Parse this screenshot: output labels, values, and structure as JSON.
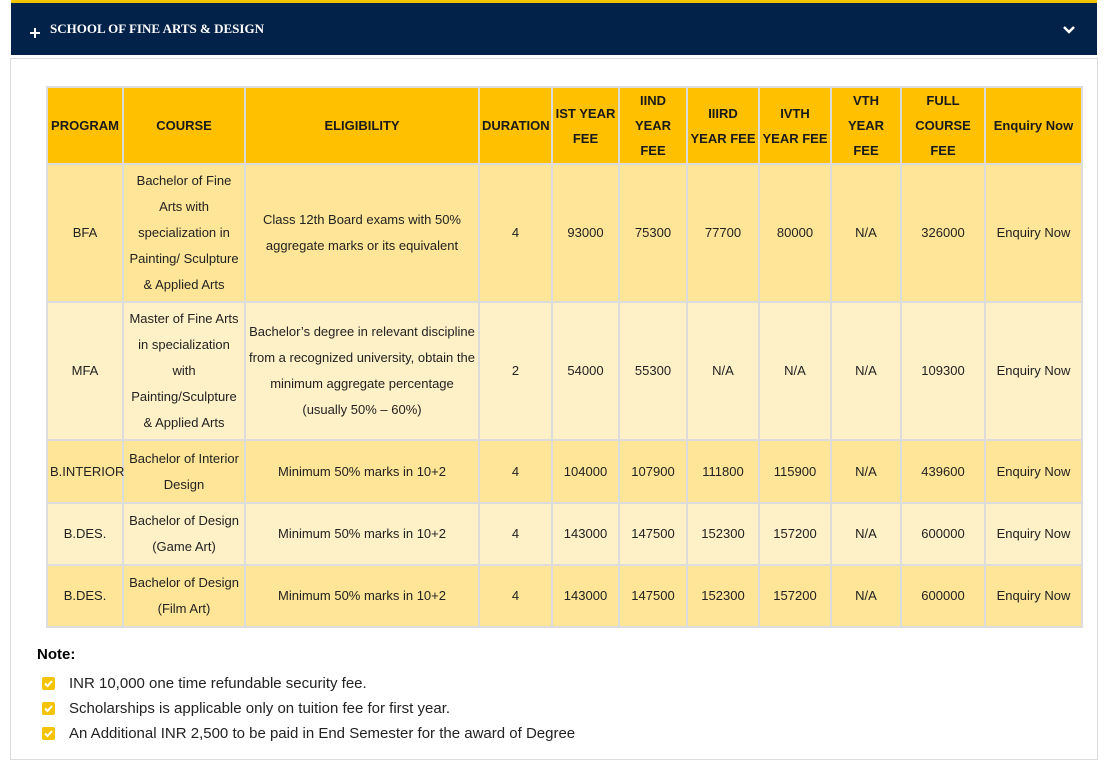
{
  "header": {
    "title": "SCHOOL OF FINE ARTS & DESIGN"
  },
  "table": {
    "columns": [
      "PROGRAM",
      "COURSE",
      "ELIGIBILITY",
      "DURATION",
      "IST YEAR FEE",
      "IIND YEAR FEE",
      "IIIRD YEAR FEE",
      "IVTH YEAR FEE",
      "VTH YEAR FEE",
      "FULL COURSE FEE",
      "Enquiry Now"
    ],
    "rows": [
      [
        "BFA",
        "Bachelor of Fine Arts with specialization in Painting/ Sculpture & Applied Arts",
        "Class 12th Board exams with 50% aggregate marks or its equivalent",
        "4",
        "93000",
        "75300",
        "77700",
        "80000",
        "N/A",
        "326000",
        "Enquiry Now"
      ],
      [
        "MFA",
        "Master of Fine Arts in specialization with Painting/Sculpture & Applied Arts",
        "Bachelor’s degree in relevant discipline from a recognized university, obtain the minimum aggregate percentage (usually 50% – 60%)",
        "2",
        "54000",
        "55300",
        "N/A",
        "N/A",
        "N/A",
        "109300",
        "Enquiry Now"
      ],
      [
        "B.INTERIOR",
        "Bachelor of Interior Design",
        "Minimum 50% marks in 10+2",
        "4",
        "104000",
        "107900",
        "111800",
        "115900",
        "N/A",
        "439600",
        "Enquiry Now"
      ],
      [
        "B.DES.",
        "Bachelor of Design (Game Art)",
        "Minimum 50% marks in 10+2",
        "4",
        "143000",
        "147500",
        "152300",
        "157200",
        "N/A",
        "600000",
        "Enquiry Now"
      ],
      [
        "B.DES.",
        "Bachelor of Design (Film Art)",
        "Minimum 50% marks in 10+2",
        "4",
        "143000",
        "147500",
        "152300",
        "157200",
        "N/A",
        "600000",
        "Enquiry Now"
      ]
    ]
  },
  "note": {
    "title": "Note:",
    "items": [
      "INR 10,000 one time refundable security fee.",
      "Scholarships is applicable only on tuition fee for first year.",
      "An Additional INR 2,500 to be paid in End Semester for the award of Degree"
    ]
  }
}
